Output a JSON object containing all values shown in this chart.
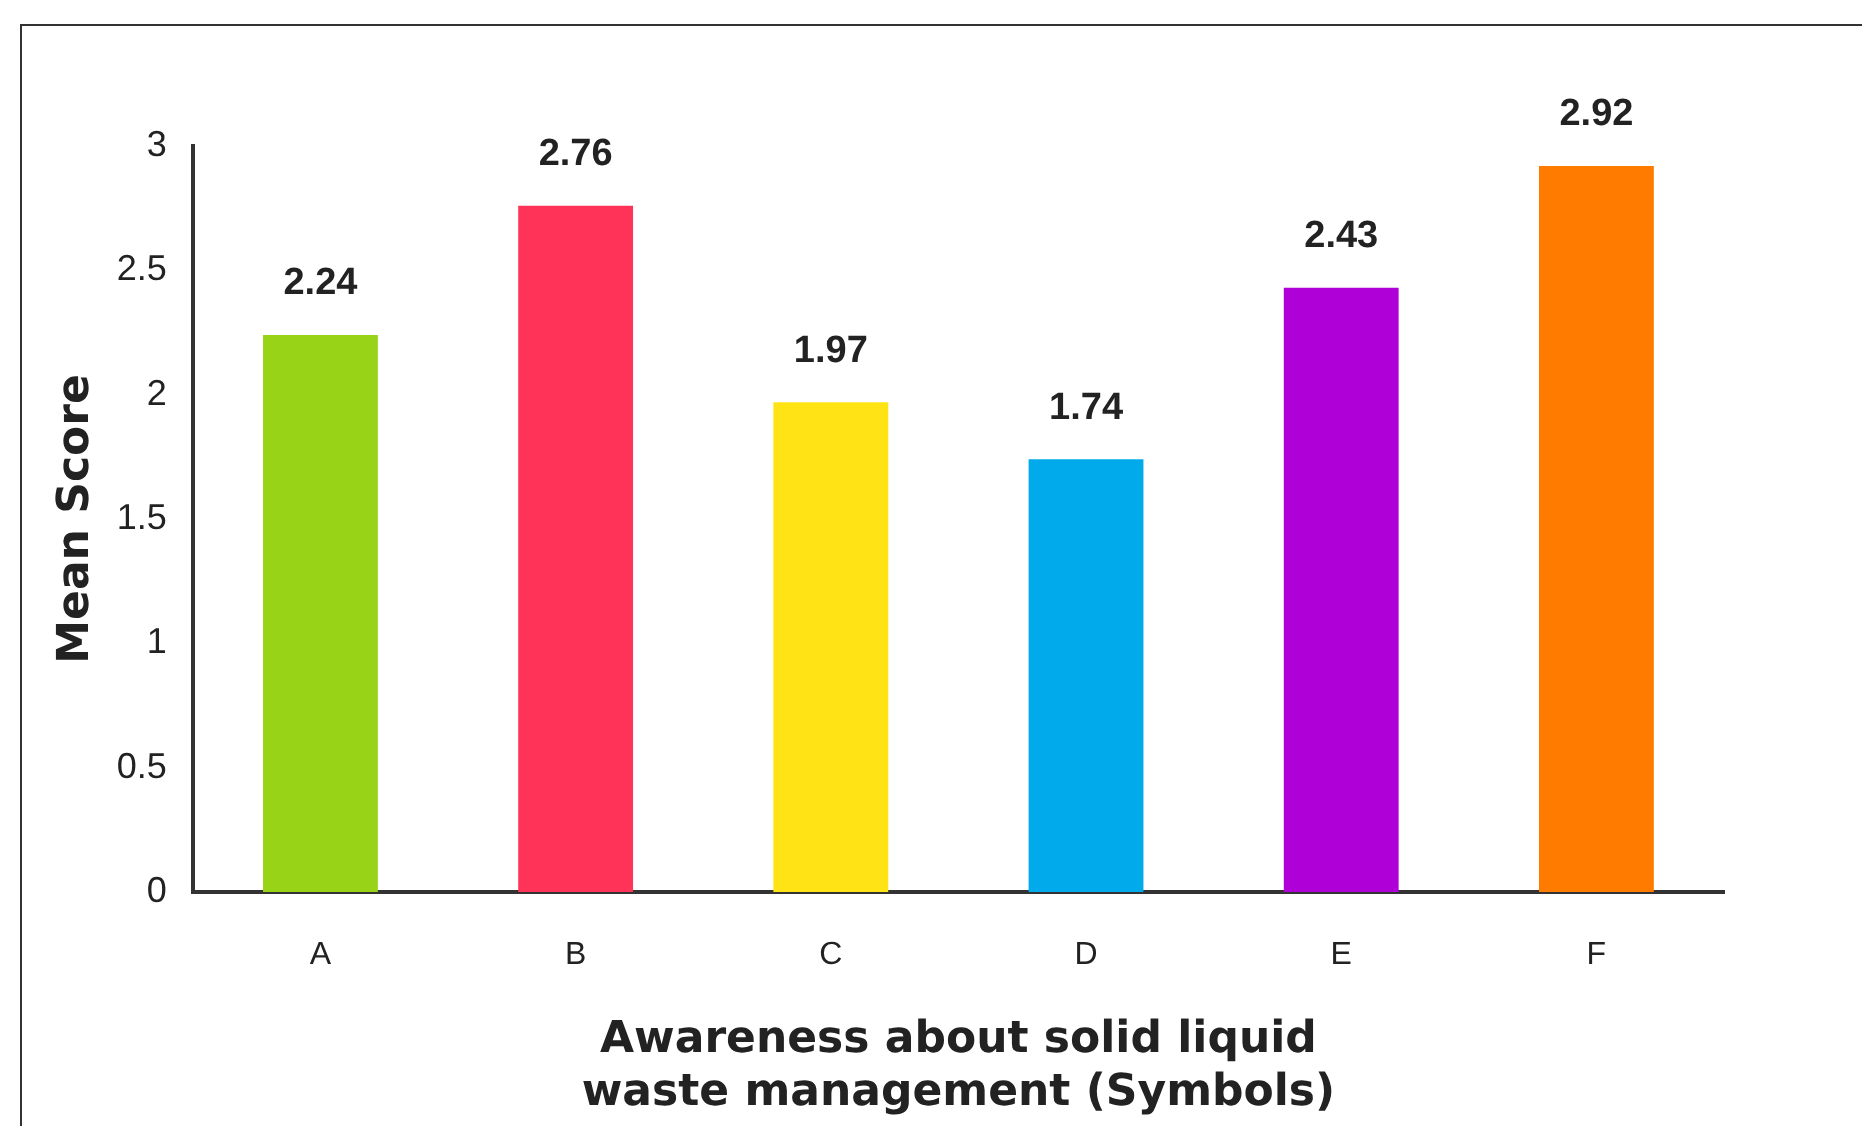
{
  "chart_data": {
    "type": "bar",
    "categories": [
      "A",
      "B",
      "C",
      "D",
      "E",
      "F"
    ],
    "values": [
      2.24,
      2.76,
      1.97,
      1.74,
      2.43,
      2.92
    ],
    "colors": [
      "#99d318",
      "#ff3358",
      "#ffe314",
      "#00aaeb",
      "#b000d8",
      "#ff7b00"
    ],
    "ylim": [
      0,
      3
    ],
    "yticks": [
      0,
      0.5,
      1,
      1.5,
      2,
      2.5,
      3
    ],
    "ylabel": "Mean Score",
    "xlabel": "Awareness about solid liquid waste management (Symbols)",
    "grid": false,
    "legend": false,
    "data_labels": true
  }
}
